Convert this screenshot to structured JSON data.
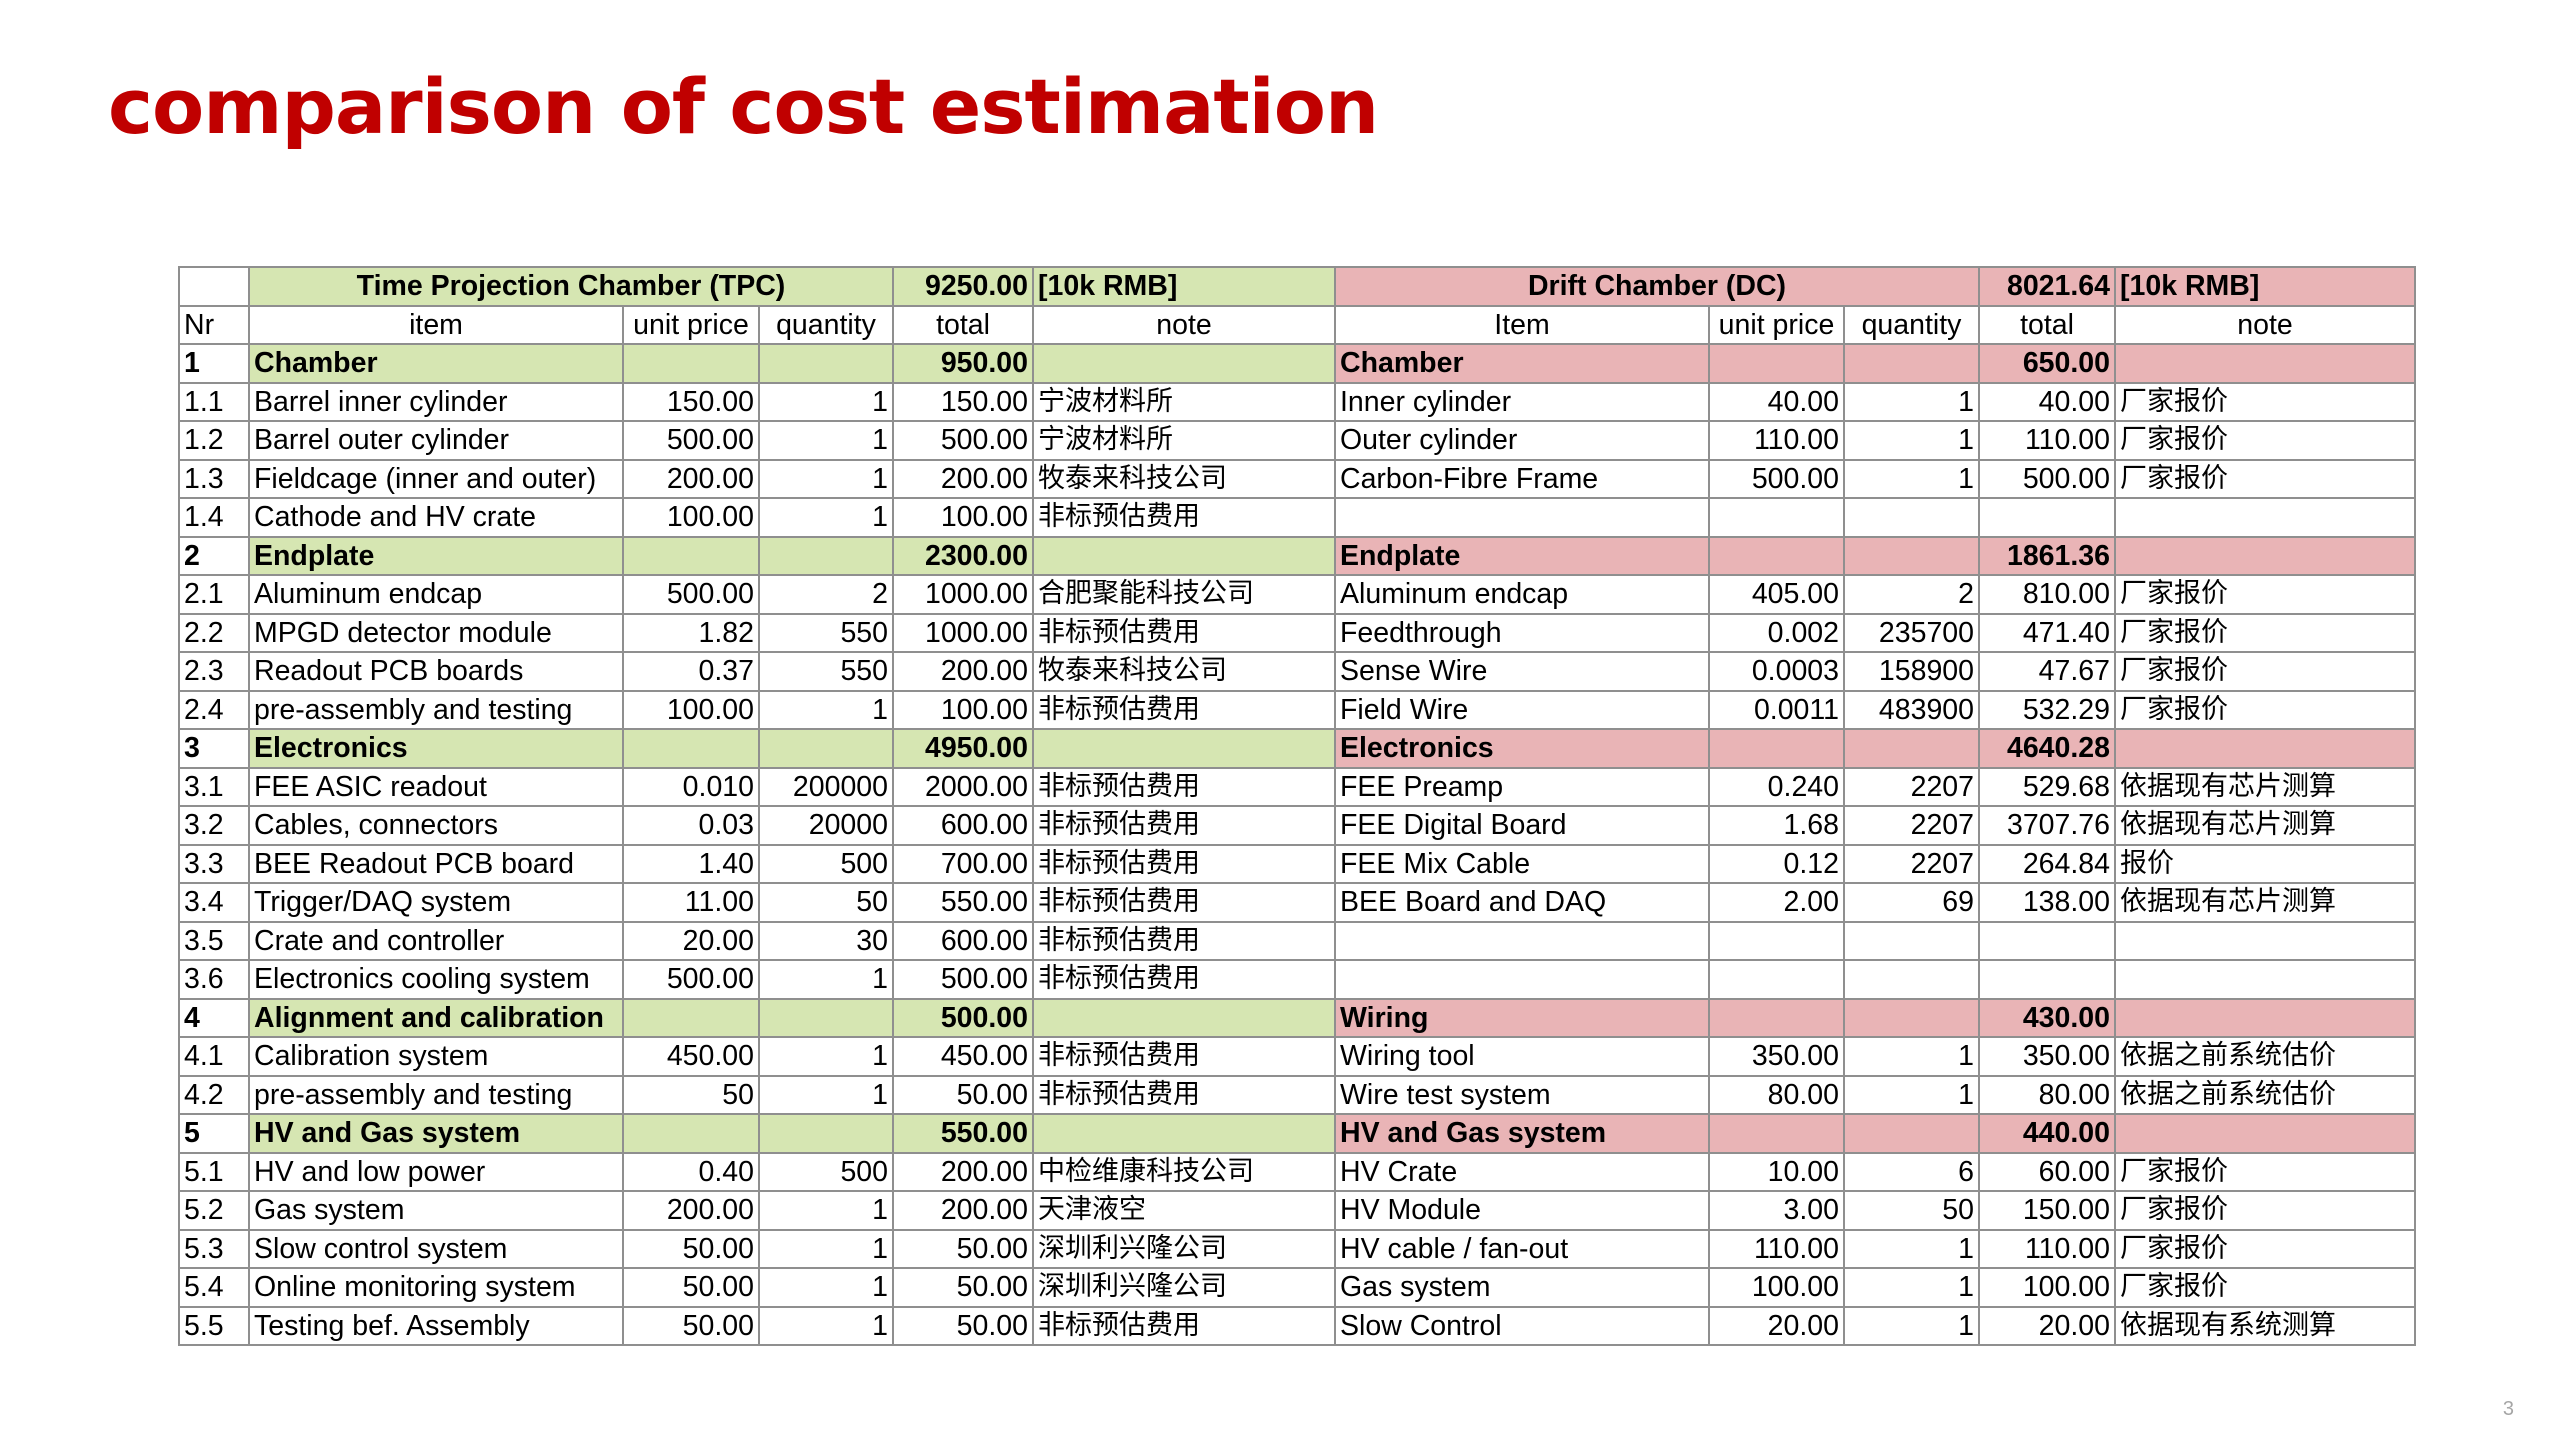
{
  "title": "comparison of cost estimation",
  "page_number": "3",
  "table": {
    "tpc": {
      "name": "Time Projection Chamber (TPC)",
      "total": "9250.00",
      "unit": "[10k RMB]"
    },
    "dc": {
      "name": "Drift Chamber (DC)",
      "total": "8021.64",
      "unit": "[10k RMB]"
    },
    "columns": {
      "nr": "Nr",
      "tpc": [
        "item",
        "unit price",
        "quantity",
        "total",
        "note"
      ],
      "dc": [
        "Item",
        "unit price",
        "quantity",
        "total",
        "note"
      ]
    },
    "rows": [
      {
        "nr": "1",
        "section": true,
        "tpc": [
          "Chamber",
          "",
          "",
          "950.00",
          ""
        ],
        "dc": [
          "Chamber",
          "",
          "",
          "650.00",
          ""
        ]
      },
      {
        "nr": "1.1",
        "tpc": [
          "Barrel inner cylinder",
          "150.00",
          "1",
          "150.00",
          "宁波材料所"
        ],
        "dc": [
          "Inner cylinder",
          "40.00",
          "1",
          "40.00",
          "厂家报价"
        ]
      },
      {
        "nr": "1.2",
        "tpc": [
          "Barrel outer cylinder",
          "500.00",
          "1",
          "500.00",
          "宁波材料所"
        ],
        "dc": [
          "Outer cylinder",
          "110.00",
          "1",
          "110.00",
          "厂家报价"
        ]
      },
      {
        "nr": "1.3",
        "tpc": [
          "Fieldcage (inner and outer)",
          "200.00",
          "1",
          "200.00",
          "牧泰来科技公司"
        ],
        "dc": [
          "Carbon-Fibre Frame",
          "500.00",
          "1",
          "500.00",
          "厂家报价"
        ]
      },
      {
        "nr": "1.4",
        "tpc": [
          "Cathode and HV crate",
          "100.00",
          "1",
          "100.00",
          "非标预估费用"
        ],
        "dc": [
          "",
          "",
          "",
          "",
          ""
        ]
      },
      {
        "nr": "2",
        "section": true,
        "tpc": [
          "Endplate",
          "",
          "",
          "2300.00",
          ""
        ],
        "dc": [
          "Endplate",
          "",
          "",
          "1861.36",
          ""
        ]
      },
      {
        "nr": "2.1",
        "tpc": [
          "Aluminum endcap",
          "500.00",
          "2",
          "1000.00",
          "合肥聚能科技公司"
        ],
        "dc": [
          "Aluminum endcap",
          "405.00",
          "2",
          "810.00",
          "厂家报价"
        ]
      },
      {
        "nr": "2.2",
        "tpc": [
          "MPGD detector module",
          "1.82",
          "550",
          "1000.00",
          "非标预估费用"
        ],
        "dc": [
          "Feedthrough",
          "0.002",
          "235700",
          "471.40",
          "厂家报价"
        ]
      },
      {
        "nr": "2.3",
        "tpc": [
          "Readout PCB boards",
          "0.37",
          "550",
          "200.00",
          "牧泰来科技公司"
        ],
        "dc": [
          "Sense Wire",
          "0.0003",
          "158900",
          "47.67",
          "厂家报价"
        ]
      },
      {
        "nr": "2.4",
        "tpc": [
          "pre-assembly and testing",
          "100.00",
          "1",
          "100.00",
          "非标预估费用"
        ],
        "dc": [
          "Field Wire",
          "0.0011",
          "483900",
          "532.29",
          "厂家报价"
        ]
      },
      {
        "nr": "3",
        "section": true,
        "tpc": [
          "Electronics",
          "",
          "",
          "4950.00",
          ""
        ],
        "dc": [
          "Electronics",
          "",
          "",
          "4640.28",
          ""
        ]
      },
      {
        "nr": "3.1",
        "tpc": [
          "FEE ASIC readout",
          "0.010",
          "200000",
          "2000.00",
          "非标预估费用"
        ],
        "dc": [
          "FEE Preamp",
          "0.240",
          "2207",
          "529.68",
          "依据现有芯片测算"
        ]
      },
      {
        "nr": "3.2",
        "tpc": [
          "Cables, connectors",
          "0.03",
          "20000",
          "600.00",
          "非标预估费用"
        ],
        "dc": [
          "FEE Digital Board",
          "1.68",
          "2207",
          "3707.76",
          "依据现有芯片测算"
        ]
      },
      {
        "nr": "3.3",
        "tpc": [
          "BEE Readout PCB board",
          "1.40",
          "500",
          "700.00",
          "非标预估费用"
        ],
        "dc": [
          "FEE Mix Cable",
          "0.12",
          "2207",
          "264.84",
          "报价"
        ]
      },
      {
        "nr": "3.4",
        "tpc": [
          "Trigger/DAQ system",
          "11.00",
          "50",
          "550.00",
          "非标预估费用"
        ],
        "dc": [
          "BEE Board and DAQ",
          "2.00",
          "69",
          "138.00",
          "依据现有芯片测算"
        ]
      },
      {
        "nr": "3.5",
        "tpc": [
          "Crate and controller",
          "20.00",
          "30",
          "600.00",
          "非标预估费用"
        ],
        "dc": [
          "",
          "",
          "",
          "",
          ""
        ]
      },
      {
        "nr": "3.6",
        "tpc": [
          "Electronics cooling system",
          "500.00",
          "1",
          "500.00",
          "非标预估费用"
        ],
        "dc": [
          "",
          "",
          "",
          "",
          ""
        ]
      },
      {
        "nr": "4",
        "section": true,
        "tpc": [
          "Alignment and calibration",
          "",
          "",
          "500.00",
          ""
        ],
        "dc": [
          "Wiring",
          "",
          "",
          "430.00",
          ""
        ]
      },
      {
        "nr": "4.1",
        "tpc": [
          "Calibration system",
          "450.00",
          "1",
          "450.00",
          "非标预估费用"
        ],
        "dc": [
          "Wiring tool",
          "350.00",
          "1",
          "350.00",
          "依据之前系统估价"
        ]
      },
      {
        "nr": "4.2",
        "tpc": [
          "pre-assembly and testing",
          "50",
          "1",
          "50.00",
          "非标预估费用"
        ],
        "dc": [
          "Wire test system",
          "80.00",
          "1",
          "80.00",
          "依据之前系统估价"
        ]
      },
      {
        "nr": "5",
        "section": true,
        "tpc": [
          "HV and Gas system",
          "",
          "",
          "550.00",
          ""
        ],
        "dc": [
          "HV and Gas system",
          "",
          "",
          "440.00",
          ""
        ]
      },
      {
        "nr": "5.1",
        "tpc": [
          "HV and low power",
          "0.40",
          "500",
          "200.00",
          "中检维康科技公司"
        ],
        "dc": [
          "HV  Crate",
          "10.00",
          "6",
          "60.00",
          "厂家报价"
        ]
      },
      {
        "nr": "5.2",
        "tpc": [
          "Gas system",
          "200.00",
          "1",
          "200.00",
          "天津液空"
        ],
        "dc": [
          "HV Module",
          "3.00",
          "50",
          "150.00",
          "厂家报价"
        ]
      },
      {
        "nr": "5.3",
        "tpc": [
          "Slow control system",
          "50.00",
          "1",
          "50.00",
          "深圳利兴隆公司"
        ],
        "dc": [
          "HV cable / fan-out",
          "110.00",
          "1",
          "110.00",
          "厂家报价"
        ]
      },
      {
        "nr": "5.4",
        "tpc": [
          "Online monitoring system",
          "50.00",
          "1",
          "50.00",
          "深圳利兴隆公司"
        ],
        "dc": [
          "Gas system",
          "100.00",
          "1",
          "100.00",
          "厂家报价"
        ]
      },
      {
        "nr": "5.5",
        "tpc": [
          "Testing bef. Assembly",
          "50.00",
          "1",
          "50.00",
          "非标预估费用"
        ],
        "dc": [
          "Slow Control",
          "20.00",
          "1",
          "20.00",
          "依据现有系统测算"
        ]
      }
    ]
  }
}
